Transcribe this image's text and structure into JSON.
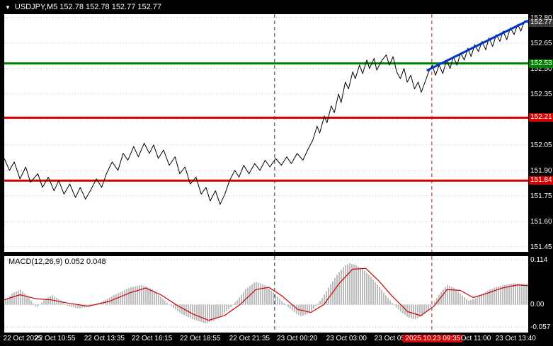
{
  "colors": {
    "background": "#000000",
    "plot_bg": "#ffffff",
    "axis_text": "#ffffff",
    "grid": "#b4b4b4",
    "price": "#000000",
    "trend": "#0033cc",
    "hist": "#bdbdbd",
    "signal": "#cc0000",
    "level_green": "#008000",
    "level_red": "#d40000",
    "current_tag_bg": "#3a3a3a",
    "time_highlight_bg": "#d40000"
  },
  "header": {
    "collapse_icon": "▼",
    "title": "USDJPY,M5 152.78 152.78 152.77 152.77"
  },
  "indicator_label": "MACD(12,26,9) 0.052 0.048",
  "chart_data": [
    {
      "type": "line",
      "name": "USDJPY,M5 close",
      "ylim": [
        151.42,
        152.82
      ],
      "y_ticks": [
        "152.80",
        "152.65",
        "152.50",
        "152.35",
        "152.20",
        "152.05",
        "151.90",
        "151.75",
        "151.60",
        "151.45"
      ],
      "x_ticks": [
        {
          "text": "22 Oct 2025",
          "t": 0.035
        },
        {
          "text": "22 Oct 10:55",
          "t": 0.097
        },
        {
          "text": "22 Oct 13:35",
          "t": 0.191
        },
        {
          "text": "22 Oct 16:15",
          "t": 0.282
        },
        {
          "text": "22 Oct 18:55",
          "t": 0.374
        },
        {
          "text": "22 Oct 21:35",
          "t": 0.468
        },
        {
          "text": "23 Oct 00:20",
          "t": 0.559
        },
        {
          "text": "23 Oct 03:00",
          "t": 0.653
        },
        {
          "text": "23 Oct 05:40",
          "t": 0.745
        },
        {
          "text": "2025.10.23 09:35",
          "t": 0.818,
          "highlight": true
        },
        {
          "text": "Oct 11:00",
          "t": 0.9
        },
        {
          "text": "23 Oct 13:40",
          "t": 0.976
        }
      ],
      "levels": [
        {
          "price": 152.53,
          "color": "#008000"
        },
        {
          "price": 152.21,
          "color": "#d40000"
        },
        {
          "price": 151.84,
          "color": "#d40000"
        }
      ],
      "price_tags": [
        {
          "label": "152.77",
          "price": 152.77,
          "bg": "#3a3a3a"
        },
        {
          "label": "152.53",
          "price": 152.53,
          "bg": "#008000"
        },
        {
          "label": "152.21",
          "price": 152.21,
          "bg": "#d40000"
        },
        {
          "label": "151.84",
          "price": 151.84,
          "bg": "#d40000"
        }
      ],
      "vlines": [
        {
          "t": 0.516,
          "color": "#303030",
          "name": "day-separator-line"
        },
        {
          "t": 0.816,
          "color": "#b22222",
          "name": "analysis-time-line"
        }
      ],
      "trendline": {
        "t1": 0.808,
        "p1": 152.49,
        "t2": 0.998,
        "p2": 152.78,
        "color": "#0033cc"
      },
      "series": [
        {
          "name": "close",
          "points": [
            [
              0,
              151.97
            ],
            [
              0.01,
              151.9
            ],
            [
              0.019,
              151.95
            ],
            [
              0.03,
              151.85
            ],
            [
              0.041,
              151.92
            ],
            [
              0.05,
              151.83
            ],
            [
              0.064,
              151.88
            ],
            [
              0.073,
              151.8
            ],
            [
              0.084,
              151.86
            ],
            [
              0.095,
              151.78
            ],
            [
              0.104,
              151.84
            ],
            [
              0.114,
              151.76
            ],
            [
              0.125,
              151.82
            ],
            [
              0.136,
              151.74
            ],
            [
              0.145,
              151.8
            ],
            [
              0.155,
              151.73
            ],
            [
              0.166,
              151.79
            ],
            [
              0.176,
              151.85
            ],
            [
              0.186,
              151.8
            ],
            [
              0.195,
              151.88
            ],
            [
              0.206,
              151.95
            ],
            [
              0.217,
              151.9
            ],
            [
              0.227,
              152.0
            ],
            [
              0.236,
              151.96
            ],
            [
              0.247,
              152.04
            ],
            [
              0.256,
              151.98
            ],
            [
              0.267,
              152.06
            ],
            [
              0.277,
              152.0
            ],
            [
              0.285,
              152.05
            ],
            [
              0.294,
              151.97
            ],
            [
              0.304,
              152.02
            ],
            [
              0.315,
              151.93
            ],
            [
              0.326,
              151.98
            ],
            [
              0.335,
              151.88
            ],
            [
              0.345,
              151.92
            ],
            [
              0.355,
              151.82
            ],
            [
              0.366,
              151.86
            ],
            [
              0.376,
              151.76
            ],
            [
              0.385,
              151.8
            ],
            [
              0.393,
              151.72
            ],
            [
              0.403,
              151.78
            ],
            [
              0.412,
              151.7
            ],
            [
              0.421,
              151.76
            ],
            [
              0.43,
              151.84
            ],
            [
              0.44,
              151.9
            ],
            [
              0.448,
              151.86
            ],
            [
              0.457,
              151.93
            ],
            [
              0.467,
              151.88
            ],
            [
              0.478,
              151.94
            ],
            [
              0.488,
              151.9
            ],
            [
              0.498,
              151.96
            ],
            [
              0.507,
              151.92
            ],
            [
              0.518,
              151.97
            ],
            [
              0.529,
              151.93
            ],
            [
              0.539,
              151.98
            ],
            [
              0.548,
              151.94
            ],
            [
              0.559,
              152.0
            ],
            [
              0.57,
              151.96
            ],
            [
              0.579,
              152.02
            ],
            [
              0.589,
              152.08
            ],
            [
              0.597,
              152.16
            ],
            [
              0.602,
              152.12
            ],
            [
              0.611,
              152.22
            ],
            [
              0.616,
              152.18
            ],
            [
              0.624,
              152.28
            ],
            [
              0.63,
              152.24
            ],
            [
              0.638,
              152.35
            ],
            [
              0.643,
              152.3
            ],
            [
              0.651,
              152.42
            ],
            [
              0.657,
              152.38
            ],
            [
              0.665,
              152.48
            ],
            [
              0.67,
              152.44
            ],
            [
              0.678,
              152.52
            ],
            [
              0.684,
              152.47
            ],
            [
              0.692,
              152.55
            ],
            [
              0.697,
              152.5
            ],
            [
              0.706,
              152.56
            ],
            [
              0.711,
              152.49
            ],
            [
              0.719,
              152.54
            ],
            [
              0.729,
              152.58
            ],
            [
              0.735,
              152.52
            ],
            [
              0.742,
              152.57
            ],
            [
              0.749,
              152.48
            ],
            [
              0.756,
              152.44
            ],
            [
              0.763,
              152.5
            ],
            [
              0.769,
              152.42
            ],
            [
              0.776,
              152.46
            ],
            [
              0.783,
              152.38
            ],
            [
              0.79,
              152.42
            ],
            [
              0.796,
              152.36
            ],
            [
              0.803,
              152.42
            ],
            [
              0.81,
              152.48
            ],
            [
              0.817,
              152.52
            ],
            [
              0.823,
              152.46
            ],
            [
              0.83,
              152.52
            ],
            [
              0.837,
              152.47
            ],
            [
              0.844,
              152.55
            ],
            [
              0.851,
              152.5
            ],
            [
              0.857,
              152.57
            ],
            [
              0.864,
              152.52
            ],
            [
              0.871,
              152.59
            ],
            [
              0.878,
              152.55
            ],
            [
              0.885,
              152.62
            ],
            [
              0.891,
              152.57
            ],
            [
              0.898,
              152.64
            ],
            [
              0.905,
              152.6
            ],
            [
              0.912,
              152.66
            ],
            [
              0.919,
              152.61
            ],
            [
              0.925,
              152.68
            ],
            [
              0.932,
              152.63
            ],
            [
              0.939,
              152.7
            ],
            [
              0.946,
              152.66
            ],
            [
              0.952,
              152.72
            ],
            [
              0.959,
              152.67
            ],
            [
              0.966,
              152.74
            ],
            [
              0.973,
              152.7
            ],
            [
              0.98,
              152.76
            ],
            [
              0.986,
              152.72
            ],
            [
              0.993,
              152.78
            ],
            [
              1,
              152.77
            ]
          ]
        }
      ]
    },
    {
      "type": "bar",
      "name": "MACD(12,26,9)",
      "values": {
        "macd": 0.052,
        "signal": 0.048
      },
      "ylim": [
        -0.071,
        0.123
      ],
      "y_ticks": [
        "0.114",
        "0.00",
        "-0.057"
      ],
      "hist": [
        [
          0,
          0.01
        ],
        [
          0.015,
          0.03
        ],
        [
          0.03,
          0.038
        ],
        [
          0.045,
          0.02
        ],
        [
          0.06,
          -0.008
        ],
        [
          0.075,
          0.012
        ],
        [
          0.09,
          0.024
        ],
        [
          0.105,
          0.012
        ],
        [
          0.12,
          -0.004
        ],
        [
          0.14,
          -0.01
        ],
        [
          0.16,
          -0.006
        ],
        [
          0.18,
          0.004
        ],
        [
          0.2,
          0.018
        ],
        [
          0.22,
          0.032
        ],
        [
          0.24,
          0.044
        ],
        [
          0.26,
          0.05
        ],
        [
          0.28,
          0.04
        ],
        [
          0.295,
          0.022
        ],
        [
          0.31,
          0.004
        ],
        [
          0.325,
          -0.012
        ],
        [
          0.34,
          -0.026
        ],
        [
          0.36,
          -0.038
        ],
        [
          0.383,
          -0.048
        ],
        [
          0.4,
          -0.04
        ],
        [
          0.415,
          -0.026
        ],
        [
          0.43,
          -0.008
        ],
        [
          0.445,
          0.014
        ],
        [
          0.46,
          0.04
        ],
        [
          0.478,
          0.058
        ],
        [
          0.495,
          0.05
        ],
        [
          0.51,
          0.034
        ],
        [
          0.525,
          0.014
        ],
        [
          0.54,
          -0.006
        ],
        [
          0.555,
          -0.022
        ],
        [
          0.566,
          -0.03
        ],
        [
          0.58,
          -0.022
        ],
        [
          0.592,
          -0.006
        ],
        [
          0.605,
          0.016
        ],
        [
          0.62,
          0.048
        ],
        [
          0.635,
          0.078
        ],
        [
          0.648,
          0.098
        ],
        [
          0.658,
          0.105
        ],
        [
          0.67,
          0.1
        ],
        [
          0.685,
          0.088
        ],
        [
          0.7,
          0.068
        ],
        [
          0.715,
          0.044
        ],
        [
          0.729,
          0.02
        ],
        [
          0.742,
          0
        ],
        [
          0.755,
          -0.018
        ],
        [
          0.769,
          -0.032
        ],
        [
          0.782,
          -0.038
        ],
        [
          0.795,
          -0.03
        ],
        [
          0.808,
          -0.014
        ],
        [
          0.818,
          0.004
        ],
        [
          0.83,
          0.028
        ],
        [
          0.844,
          0.05
        ],
        [
          0.858,
          0.042
        ],
        [
          0.872,
          0.024
        ],
        [
          0.885,
          0.01
        ],
        [
          0.898,
          0.016
        ],
        [
          0.912,
          0.028
        ],
        [
          0.925,
          0.038
        ],
        [
          0.94,
          0.046
        ],
        [
          0.955,
          0.05
        ],
        [
          0.97,
          0.054
        ],
        [
          0.985,
          0.053
        ],
        [
          1,
          0.052
        ]
      ],
      "signal": [
        [
          0,
          0.012
        ],
        [
          0.03,
          0.025
        ],
        [
          0.06,
          0.015
        ],
        [
          0.09,
          0.012
        ],
        [
          0.12,
          0.004
        ],
        [
          0.16,
          -0.004
        ],
        [
          0.2,
          0.008
        ],
        [
          0.24,
          0.03
        ],
        [
          0.27,
          0.042
        ],
        [
          0.3,
          0.024
        ],
        [
          0.33,
          -0.002
        ],
        [
          0.36,
          -0.024
        ],
        [
          0.39,
          -0.04
        ],
        [
          0.42,
          -0.028
        ],
        [
          0.45,
          0
        ],
        [
          0.48,
          0.038
        ],
        [
          0.505,
          0.044
        ],
        [
          0.53,
          0.022
        ],
        [
          0.56,
          -0.012
        ],
        [
          0.585,
          -0.02
        ],
        [
          0.61,
          0
        ],
        [
          0.64,
          0.055
        ],
        [
          0.665,
          0.09
        ],
        [
          0.69,
          0.092
        ],
        [
          0.715,
          0.06
        ],
        [
          0.74,
          0.022
        ],
        [
          0.77,
          -0.018
        ],
        [
          0.795,
          -0.028
        ],
        [
          0.82,
          -0.004
        ],
        [
          0.845,
          0.038
        ],
        [
          0.87,
          0.036
        ],
        [
          0.895,
          0.018
        ],
        [
          0.92,
          0.028
        ],
        [
          0.95,
          0.042
        ],
        [
          0.98,
          0.05
        ],
        [
          1,
          0.048
        ]
      ]
    }
  ]
}
